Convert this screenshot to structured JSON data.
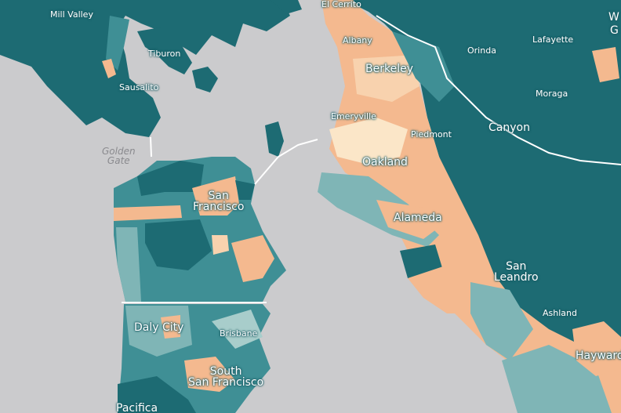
{
  "palette": {
    "water": "#cbcbcd",
    "deep_teal": "#1d6b73",
    "mid_teal": "#3f8f95",
    "light_teal": "#7fb5b6",
    "pale_teal": "#a8cdcb",
    "peach": "#f4b98f",
    "light_peach": "#f8d2ae",
    "cream": "#fbe6c8",
    "boundary": "#ffffff"
  },
  "labels": {
    "mill_valley": "Mill Valley",
    "el_cerrito": "El Cerrito",
    "tiburon": "Tiburon",
    "albany": "Albany",
    "orinda": "Orinda",
    "lafayette": "Lafayette",
    "berkeley": "Berkeley",
    "sausalito": "Sausalito",
    "moraga": "Moraga",
    "emeryville": "Emeryville",
    "canyon": "Canyon",
    "piedmont": "Piedmont",
    "golden_gate_line1": "Golden",
    "golden_gate_line2": "Gate",
    "oakland": "Oakland",
    "san_francisco_line1": "San",
    "san_francisco_line2": "Francisco",
    "alameda": "Alameda",
    "san_leandro_line1": "San",
    "san_leandro_line2": "Leandro",
    "ashland": "Ashland",
    "daly_city": "Daly City",
    "brisbane": "Brisbane",
    "hayward": "Hayward",
    "south_sf_line1": "South",
    "south_sf_line2": "San Francisco",
    "pacifica": "Pacifica",
    "walnut_creek_partial": "W",
    "walnut_creek_partial2": "G"
  }
}
